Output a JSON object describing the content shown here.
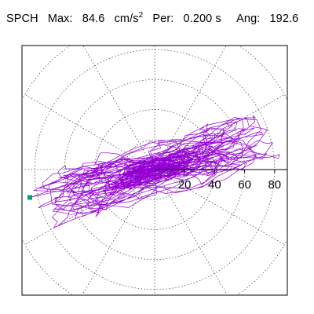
{
  "header": {
    "station": "SPCH",
    "max_label": "Max:",
    "max_value": "84.6",
    "max_unit": "cm/s",
    "max_unit_exp": "2",
    "period_label": "Per:",
    "period_value": "0.200 s",
    "angle_label": "Ang:",
    "angle_value": "192.6"
  },
  "chart_data": {
    "type": "scatter",
    "title": "",
    "xlabel": "",
    "ylabel": "",
    "radial_ticks": [
      20,
      40,
      60,
      80
    ],
    "radial_tick_labels": [
      "20",
      "40",
      "60",
      "80"
    ],
    "r_max": 100,
    "angular_grid_step_deg": 30,
    "grid": true,
    "max_value": 84.6,
    "max_angle_deg": 192.6,
    "series": [
      {
        "color": "#9400d3"
      }
    ],
    "max_marker_color": "#00a080"
  }
}
